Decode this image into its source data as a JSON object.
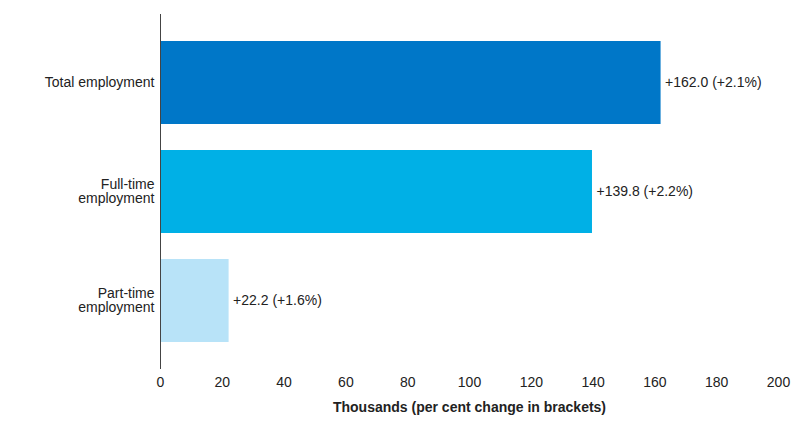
{
  "chart_data": {
    "type": "bar",
    "orientation": "horizontal",
    "categories": [
      "Total employment",
      "Full-time\nemployment",
      "Part-time\nemployment"
    ],
    "values": [
      162.0,
      139.8,
      22.2
    ],
    "value_labels": [
      "+162.0 (+2.1%)",
      "+139.8 (+2.2%)",
      "+22.2 (+1.6%)"
    ],
    "colors": [
      "#0077c8",
      "#00b0e6",
      "#b8e3f8"
    ],
    "x_label": "Thousands (per cent change in brackets)",
    "xlim": [
      0,
      200
    ],
    "xticks": [
      0,
      20,
      40,
      60,
      80,
      100,
      120,
      140,
      160,
      180,
      200
    ],
    "grid": false,
    "data_labels": true
  }
}
